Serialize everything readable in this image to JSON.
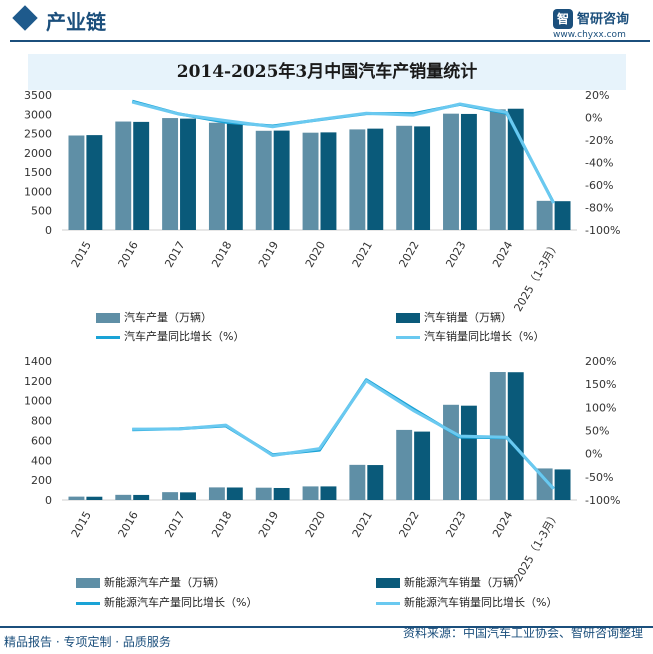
{
  "header": {
    "section_title": "产业链",
    "brand_name": "智研咨询",
    "brand_url": "www.chyxx.com"
  },
  "footer": {
    "left_text": "精品报告 · 专项定制 · 品质服务",
    "source_text": "资料来源：中国汽车工业协会、智研咨询整理"
  },
  "colors": {
    "production_bar": "#5f8fa6",
    "sales_bar": "#0a5a7a",
    "production_line": "#1aa3d6",
    "sales_line": "#6ac9f0",
    "title_band": "#e7f3fb",
    "brand": "#1b4f7c"
  },
  "chart_data": [
    {
      "type": "bar",
      "title": "2014-2025年3月中国汽车产销量统计",
      "categories": [
        "2015",
        "2016",
        "2017",
        "2018",
        "2019",
        "2020",
        "2021",
        "2022",
        "2023",
        "2024",
        "2025（1-3月）"
      ],
      "y_ticks": [
        "0",
        "500",
        "1000",
        "1500",
        "2000",
        "2500",
        "3000",
        "3500"
      ],
      "ylim": [
        0,
        3500
      ],
      "y2_ticks": [
        "-100%",
        "-80%",
        "-60%",
        "-40%",
        "-20%",
        "0%",
        "20%"
      ],
      "y2lim": [
        -100,
        20
      ],
      "series": [
        {
          "name": "汽车产量（万辆）",
          "kind": "bar",
          "axis": "left",
          "values": [
            2450,
            2812,
            2902,
            2781,
            2572,
            2523,
            2608,
            2702,
            3016,
            3128,
            756
          ]
        },
        {
          "name": "汽车销量（万辆）",
          "kind": "bar",
          "axis": "left",
          "values": [
            2460,
            2803,
            2888,
            2808,
            2577,
            2531,
            2628,
            2686,
            3009,
            3144,
            747
          ]
        },
        {
          "name": "汽车产量同比增长（%）",
          "kind": "line",
          "axis": "right",
          "values": [
            null,
            14.5,
            3.2,
            -4.2,
            -7.5,
            -2.0,
            3.4,
            3.4,
            11.6,
            3.7,
            -75.8
          ]
        },
        {
          "name": "汽车销量同比增长（%）",
          "kind": "line",
          "axis": "right",
          "values": [
            null,
            13.7,
            3.0,
            -2.8,
            -8.2,
            -1.8,
            3.8,
            2.1,
            12.0,
            4.5,
            -76.2
          ]
        }
      ]
    },
    {
      "type": "bar",
      "categories": [
        "2015",
        "2016",
        "2017",
        "2018",
        "2019",
        "2020",
        "2021",
        "2022",
        "2023",
        "2024",
        "2025（1-3月）"
      ],
      "y_ticks": [
        "0",
        "200",
        "400",
        "600",
        "800",
        "1000",
        "1200",
        "1400"
      ],
      "ylim": [
        0,
        1400
      ],
      "y2_ticks": [
        "-100%",
        "-50%",
        "0%",
        "50%",
        "100%",
        "150%",
        "200%"
      ],
      "y2lim": [
        -100,
        200
      ],
      "series": [
        {
          "name": "新能源汽车产量（万辆）",
          "kind": "bar",
          "axis": "left",
          "values": [
            34,
            52,
            79,
            127,
            124,
            137,
            354,
            706,
            959,
            1289,
            318
          ]
        },
        {
          "name": "新能源汽车销量（万辆）",
          "kind": "bar",
          "axis": "left",
          "values": [
            33,
            51,
            77,
            126,
            121,
            137,
            352,
            689,
            950,
            1287,
            308
          ]
        },
        {
          "name": "新能源汽车产量同比增长（%）",
          "kind": "line",
          "axis": "right",
          "values": [
            null,
            51.7,
            53.8,
            59.9,
            -2.3,
            7.5,
            159.5,
            96.9,
            35.8,
            34.4,
            -75.3
          ]
        },
        {
          "name": "新能源汽车销量同比增长（%）",
          "kind": "line",
          "axis": "right",
          "values": [
            null,
            53.0,
            53.3,
            61.7,
            -4.0,
            10.9,
            157.5,
            93.4,
            37.9,
            35.5,
            -76.1
          ]
        }
      ]
    }
  ]
}
